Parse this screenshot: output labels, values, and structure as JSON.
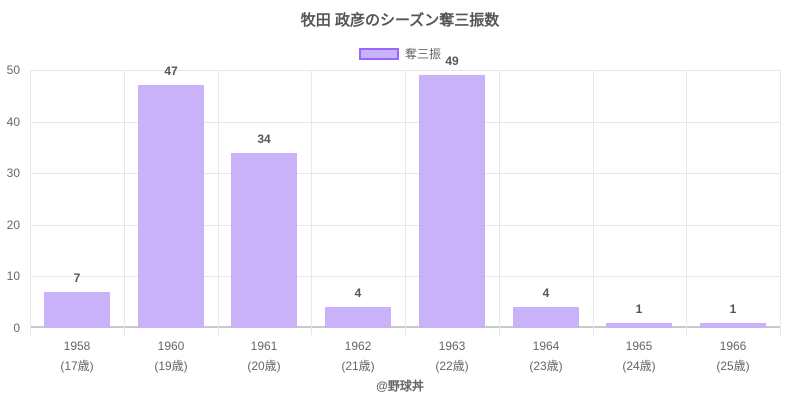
{
  "chart_data": {
    "type": "bar",
    "title": "牧田 政彦のシーズン奪三振数",
    "categories": [
      "1958",
      "1960",
      "1961",
      "1962",
      "1963",
      "1964",
      "1965",
      "1966"
    ],
    "category_sublabels": [
      "(17歳)",
      "(19歳)",
      "(20歳)",
      "(21歳)",
      "(22歳)",
      "(23歳)",
      "(24歳)",
      "(25歳)"
    ],
    "series": [
      {
        "name": "奪三振",
        "values": [
          7,
          47,
          34,
          4,
          49,
          4,
          1,
          1
        ]
      }
    ],
    "xlabel": "",
    "ylabel": "",
    "ylim": [
      0,
      50
    ],
    "yticks": [
      0,
      10,
      20,
      30,
      40,
      50
    ],
    "grid": true,
    "legend_position": "top"
  },
  "footer": {
    "credit": "@野球丼"
  },
  "colors": {
    "bar_fill": "#cab2f8",
    "bar_border": "#9966ff",
    "grid": "#e7e7e7",
    "axis": "#c9c9c9",
    "text": "#666666",
    "title": "#555555",
    "value_label": "#555555"
  }
}
